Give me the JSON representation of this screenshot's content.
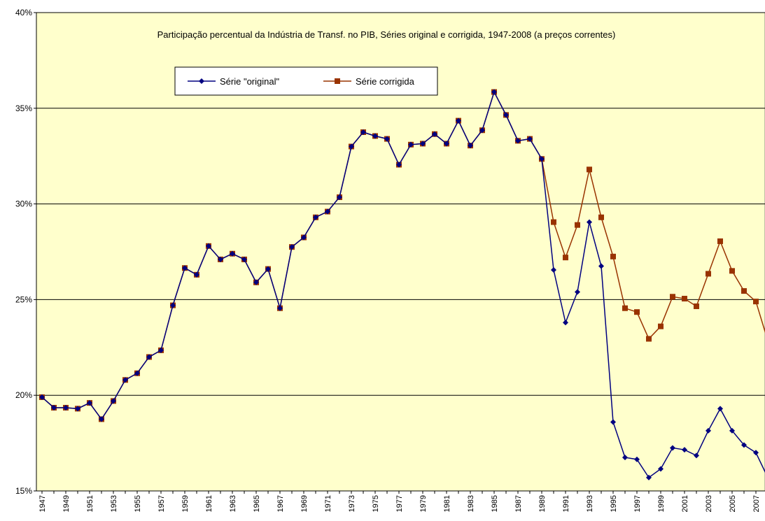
{
  "chart_data": {
    "type": "line",
    "subtitle": "Participação percentual da Indústria de Transf. no PIB, Séries original e corrigida, 1947-2008 (a preços correntes)",
    "categories": [
      "1947",
      null,
      "1949",
      null,
      "1951",
      null,
      "1953",
      null,
      "1955",
      null,
      "1957",
      null,
      "1959",
      null,
      "1961",
      null,
      "1963",
      null,
      "1965",
      null,
      "1967",
      null,
      "1969",
      null,
      "1971",
      null,
      "1973",
      null,
      "1975",
      null,
      "1977",
      null,
      "1979",
      null,
      "1981",
      null,
      "1983",
      null,
      "1985",
      null,
      "1987",
      null,
      "1989",
      null,
      "1991",
      null,
      "1993",
      null,
      "1995",
      null,
      "1997",
      null,
      "1999",
      null,
      "2001",
      null,
      "2003",
      null,
      "2005",
      null,
      "2007",
      null
    ],
    "series": [
      {
        "name": "Série \"original\"",
        "color": "#000080",
        "marker": "diamond",
        "values": [
          19.9,
          19.35,
          19.35,
          19.3,
          19.6,
          18.75,
          19.7,
          20.8,
          21.15,
          22.0,
          22.35,
          24.7,
          26.65,
          26.3,
          27.8,
          27.1,
          27.4,
          27.1,
          25.9,
          26.6,
          24.55,
          27.75,
          28.25,
          29.3,
          29.6,
          30.35,
          33.0,
          33.75,
          33.55,
          33.4,
          32.05,
          33.1,
          33.15,
          33.65,
          33.15,
          34.35,
          33.05,
          33.85,
          35.85,
          34.65,
          33.3,
          33.4,
          32.35,
          26.55,
          23.8,
          25.4,
          29.05,
          26.75,
          18.6,
          16.75,
          16.65,
          15.7,
          16.15,
          17.25,
          17.15,
          16.85,
          18.15,
          19.3,
          18.15,
          17.4,
          17.0,
          15.7
        ]
      },
      {
        "name": "Série corrigida",
        "color": "#993300",
        "marker": "square",
        "values": [
          19.9,
          19.35,
          19.35,
          19.3,
          19.6,
          18.75,
          19.7,
          20.8,
          21.15,
          22.0,
          22.35,
          24.7,
          26.65,
          26.3,
          27.8,
          27.1,
          27.4,
          27.1,
          25.9,
          26.6,
          24.55,
          27.75,
          28.25,
          29.3,
          29.6,
          30.35,
          33.0,
          33.75,
          33.55,
          33.4,
          32.05,
          33.1,
          33.15,
          33.65,
          33.15,
          34.35,
          33.05,
          33.85,
          35.85,
          34.65,
          33.3,
          33.4,
          32.35,
          29.05,
          27.2,
          28.9,
          31.8,
          29.3,
          27.25,
          24.55,
          24.35,
          22.95,
          23.6,
          25.15,
          25.05,
          24.65,
          26.35,
          28.05,
          26.5,
          25.45,
          24.9,
          22.85
        ]
      }
    ],
    "ylim": [
      15,
      40
    ],
    "yticks": [
      {
        "value": 15,
        "label": "15%"
      },
      {
        "value": 20,
        "label": "20%"
      },
      {
        "value": 25,
        "label": "25%"
      },
      {
        "value": 30,
        "label": "30%"
      },
      {
        "value": 35,
        "label": "35%"
      },
      {
        "value": 40,
        "label": "40%"
      }
    ],
    "grid": true,
    "legend": "top-left",
    "background": "#ffffcc"
  }
}
